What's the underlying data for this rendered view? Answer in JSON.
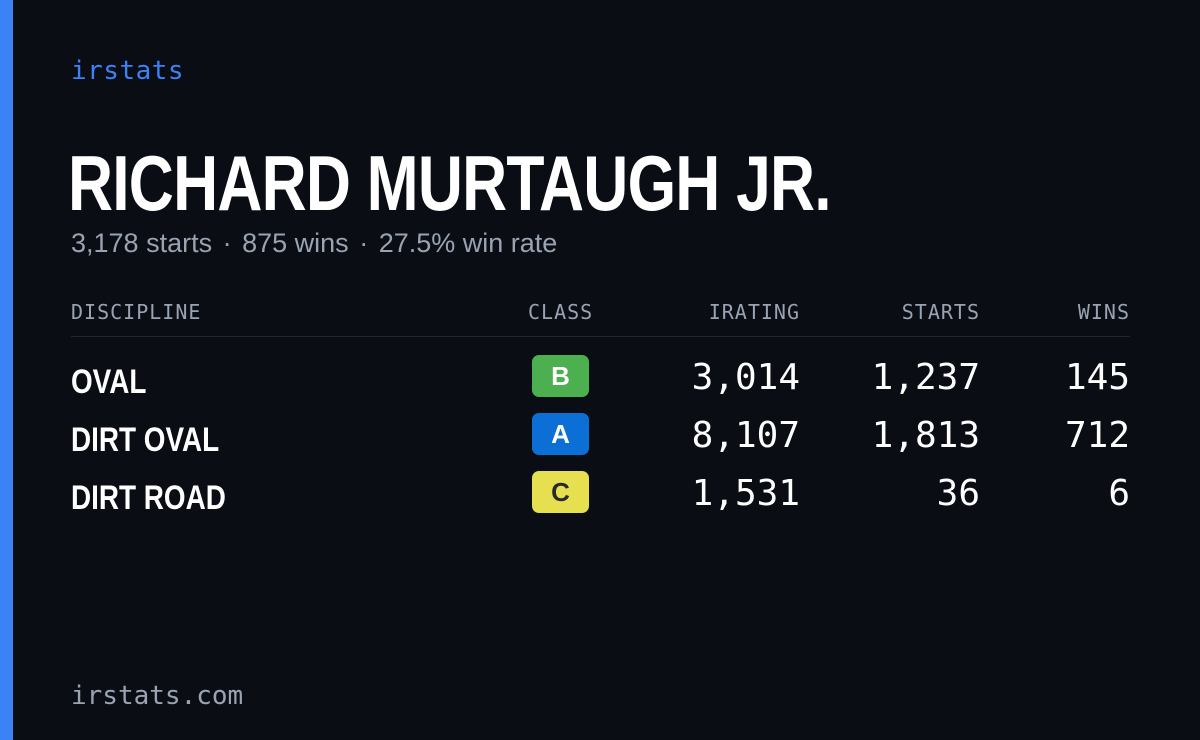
{
  "brand": "irstats",
  "driver": {
    "name": "RICHARD MURTAUGH JR.",
    "summary": {
      "starts": "3,178 starts",
      "wins": "875 wins",
      "win_rate": "27.5% win rate",
      "separator": "·"
    }
  },
  "table": {
    "headers": {
      "discipline": "DISCIPLINE",
      "class": "CLASS",
      "irating": "IRATING",
      "starts": "STARTS",
      "wins": "WINS"
    },
    "rows": [
      {
        "discipline": "OVAL",
        "class": "B",
        "class_color": "#4caf50",
        "class_text_color": "#ffffff",
        "irating": "3,014",
        "starts": "1,237",
        "wins": "145"
      },
      {
        "discipline": "DIRT OVAL",
        "class": "A",
        "class_color": "#0b6fd6",
        "class_text_color": "#ffffff",
        "irating": "8,107",
        "starts": "1,813",
        "wins": "712"
      },
      {
        "discipline": "DIRT ROAD",
        "class": "C",
        "class_color": "#e6e050",
        "class_text_color": "#2a2a2a",
        "irating": "1,531",
        "starts": "36",
        "wins": "6"
      }
    ]
  },
  "footer": "irstats.com",
  "colors": {
    "accent": "#3b82f6",
    "background": "#0a0d14",
    "muted": "#9aa3b2"
  }
}
